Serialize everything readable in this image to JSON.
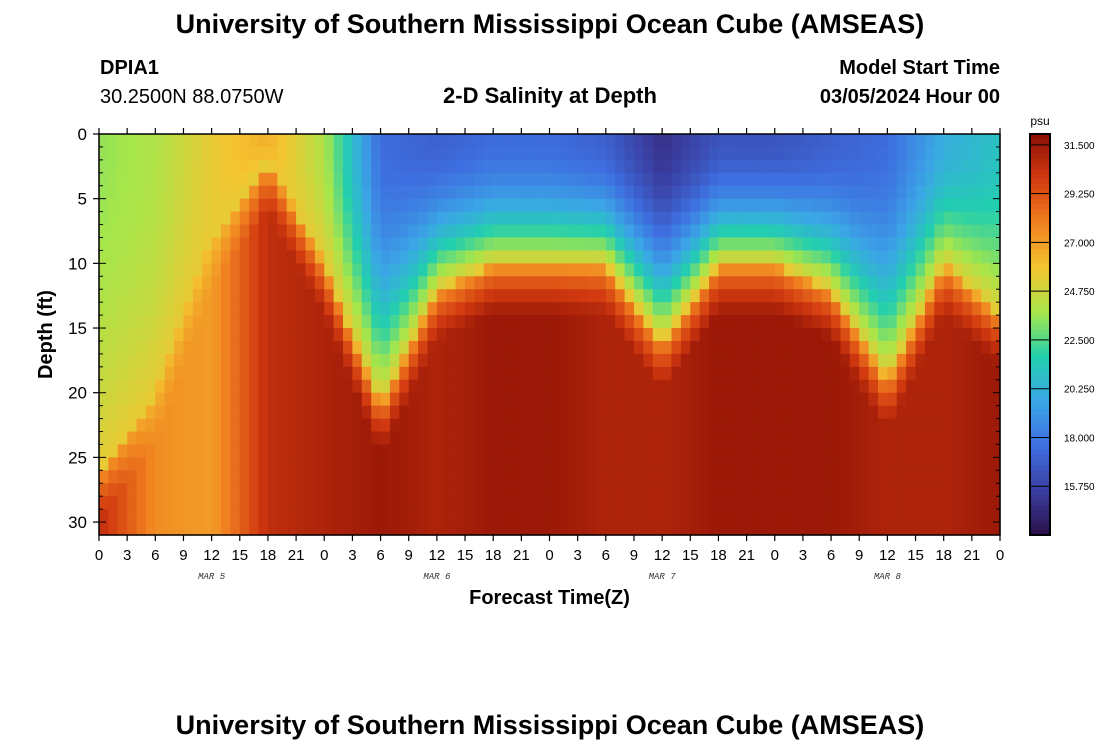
{
  "header": {
    "title": "University of Southern Mississippi Ocean Cube (AMSEAS)",
    "station_id": "DPIA1",
    "coordinates": "30.2500N  88.0750W",
    "subtitle": "2-D Salinity at Depth",
    "model_start_label": "Model Start Time",
    "model_start_value": "03/05/2024 Hour 00"
  },
  "footer": {
    "title": "University of Southern Mississippi Ocean Cube (AMSEAS)"
  },
  "chart_data": {
    "type": "heatmap",
    "title": "2-D Salinity at Depth",
    "xlabel": "Forecast Time(Z)",
    "ylabel": "Depth (ft)",
    "x_range_hours": [
      0,
      96
    ],
    "x_tick_step_hours": 3,
    "x_tick_labels": [
      "0",
      "3",
      "6",
      "9",
      "12",
      "15",
      "18",
      "21",
      "0",
      "3",
      "6",
      "9",
      "12",
      "15",
      "18",
      "21",
      "0",
      "3",
      "6",
      "9",
      "12",
      "15",
      "18",
      "21",
      "0",
      "3",
      "6",
      "9",
      "12",
      "15",
      "18",
      "21",
      "0"
    ],
    "day_labels": [
      {
        "label": "MAR 5",
        "hour": 12
      },
      {
        "label": "MAR 6",
        "hour": 36
      },
      {
        "label": "MAR 7",
        "hour": 60
      },
      {
        "label": "MAR 8",
        "hour": 84
      }
    ],
    "ylim": [
      0,
      31
    ],
    "y_ticks": [
      0,
      5,
      10,
      15,
      20,
      25,
      30
    ],
    "y_inverted": true,
    "colorbar": {
      "unit": "psu",
      "min": 13.5,
      "max": 32.0,
      "tick_values": [
        31.5,
        29.25,
        27.0,
        24.75,
        22.5,
        20.25,
        18.0,
        15.75
      ],
      "tick_labels": [
        "31.500",
        "29.250",
        "27.000",
        "24.750",
        "22.500",
        "20.250",
        "18.000",
        "15.750"
      ],
      "colors": [
        "#2a0f4a",
        "#3a3ea0",
        "#3e6fe0",
        "#3ba6e6",
        "#22cfae",
        "#a6e64a",
        "#f4c430",
        "#f08020",
        "#d23a10",
        "#8a0f05"
      ]
    },
    "surface_profile": {
      "description": "approximate depth (ft) of the fresh-to-salty interface over forecast hours",
      "hours": [
        0,
        6,
        12,
        18,
        24,
        30,
        36,
        42,
        48,
        54,
        60,
        66,
        72,
        78,
        84,
        90,
        96
      ],
      "interface_depth_ft": [
        26,
        20,
        8,
        2,
        10,
        21,
        12,
        10,
        10,
        10,
        16,
        10,
        10,
        12,
        19,
        10,
        14
      ],
      "surface_salinity_psu": [
        23.5,
        24.0,
        25.5,
        26.5,
        24.0,
        17.5,
        17.0,
        17.5,
        17.5,
        17.0,
        15.0,
        16.5,
        16.5,
        17.0,
        17.5,
        20.0,
        21.0
      ],
      "bottom_salinity_psu": [
        30.5,
        27.5,
        27.0,
        30.5,
        31.0,
        31.5,
        31.0,
        31.5,
        31.5,
        31.0,
        31.0,
        31.5,
        31.5,
        31.5,
        31.0,
        31.0,
        31.5
      ]
    }
  }
}
